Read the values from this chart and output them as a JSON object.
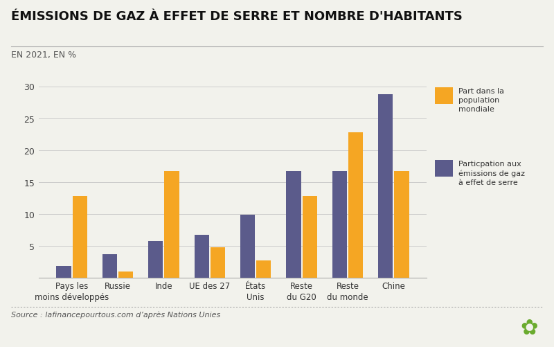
{
  "title": "ÉMISSIONS DE GAZ À EFFET DE SERRE ET NOMBRE D'HABITANTS",
  "subtitle": "EN 2021, EN %",
  "source": "Source : lafinancepourtous.com d’après Nations Unies",
  "categories": [
    "Pays les\nmoins développés",
    "Russie",
    "Inde",
    "UE des 27",
    "États\nUnis",
    "Reste\ndu G20",
    "Reste\ndu monde",
    "Chine"
  ],
  "population_share": [
    12.8,
    0.9,
    16.7,
    4.7,
    2.7,
    12.8,
    22.8,
    16.7
  ],
  "emissions_share": [
    1.8,
    3.7,
    5.7,
    6.7,
    9.8,
    16.7,
    16.7,
    28.8
  ],
  "color_population": "#F5A623",
  "color_emissions": "#5B5B8B",
  "bg_color": "#F2F2EC",
  "ylim": [
    0,
    30
  ],
  "yticks": [
    0,
    5,
    10,
    15,
    20,
    25,
    30
  ],
  "legend_population": "Part dans la\npopulation\nmondiale",
  "legend_emissions": "Particpation aux\némissions de gaz\nà effet de serre",
  "title_fontsize": 13,
  "subtitle_fontsize": 9,
  "tick_fontsize": 9,
  "bar_width": 0.32,
  "bar_gap": 0.03
}
